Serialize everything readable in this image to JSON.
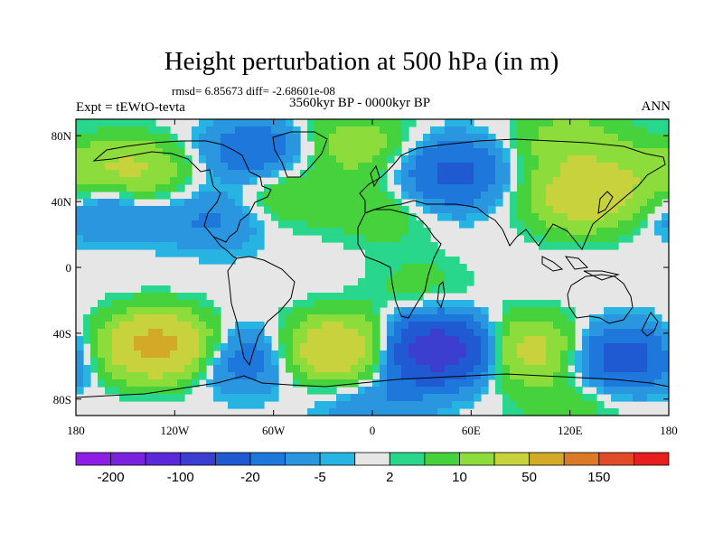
{
  "header": {
    "title": "Height perturbation at 500 hPa (in m)",
    "stats": "rmsd= 6.85673 diff= -2.68601e-08",
    "experiment": "Expt = tEWtO-tevta",
    "period": "3560kyr BP - 0000kyr BP",
    "season": "ANN"
  },
  "map": {
    "projection": "cylindrical-equidistant",
    "lon_range": [
      -180,
      180
    ],
    "lat_range": [
      -90,
      90
    ],
    "lat_ticks": [
      {
        "value": 80,
        "label": "80N"
      },
      {
        "value": 40,
        "label": "40N"
      },
      {
        "value": 0,
        "label": "0"
      },
      {
        "value": -40,
        "label": "40S"
      },
      {
        "value": -80,
        "label": "80S"
      }
    ],
    "lon_ticks": [
      {
        "value": -180,
        "label": "180"
      },
      {
        "value": -120,
        "label": "120W"
      },
      {
        "value": -60,
        "label": "60W"
      },
      {
        "value": 0,
        "label": "0"
      },
      {
        "value": 60,
        "label": "60E"
      },
      {
        "value": 120,
        "label": "120E"
      },
      {
        "value": 180,
        "label": "180"
      }
    ],
    "anomaly_centers": [
      {
        "lon": -145,
        "lat": 58,
        "value": 12
      },
      {
        "lon": -162,
        "lat": 38,
        "value": -8
      },
      {
        "lon": -70,
        "lat": 70,
        "value": -10
      },
      {
        "lon": -95,
        "lat": 30,
        "value": -6
      },
      {
        "lon": -55,
        "lat": 45,
        "value": 6
      },
      {
        "lon": -10,
        "lat": 75,
        "value": 8
      },
      {
        "lon": 10,
        "lat": 35,
        "value": 5
      },
      {
        "lon": 50,
        "lat": 60,
        "value": -10
      },
      {
        "lon": 40,
        "lat": 45,
        "value": -4
      },
      {
        "lon": 128,
        "lat": 42,
        "value": 15
      },
      {
        "lon": 120,
        "lat": 75,
        "value": 8
      },
      {
        "lon": 170,
        "lat": 55,
        "value": 6
      },
      {
        "lon": 30,
        "lat": -12,
        "value": 3
      },
      {
        "lon": -130,
        "lat": -48,
        "value": 25
      },
      {
        "lon": -80,
        "lat": -55,
        "value": -10
      },
      {
        "lon": -20,
        "lat": -50,
        "value": 20
      },
      {
        "lon": 40,
        "lat": -50,
        "value": -30
      },
      {
        "lon": 95,
        "lat": -50,
        "value": 15
      },
      {
        "lon": 150,
        "lat": -55,
        "value": -15
      },
      {
        "lon": 0,
        "lat": -82,
        "value": -5
      },
      {
        "lon": 120,
        "lat": -82,
        "value": 4
      }
    ]
  },
  "colorbar": {
    "colors": [
      "#8c1ee6",
      "#7a22e0",
      "#5a2ad8",
      "#3b3ecf",
      "#1f5ad3",
      "#1e78dc",
      "#2a96e0",
      "#28b4e2",
      "#e6e6e6",
      "#28d78c",
      "#46d23c",
      "#8cdc3c",
      "#c8d23c",
      "#d2aa28",
      "#dc7a28",
      "#e14b28",
      "#e61e1e"
    ],
    "labels": [
      "-200",
      "-100",
      "-20",
      "-5",
      "2",
      "10",
      "50",
      "150"
    ]
  }
}
